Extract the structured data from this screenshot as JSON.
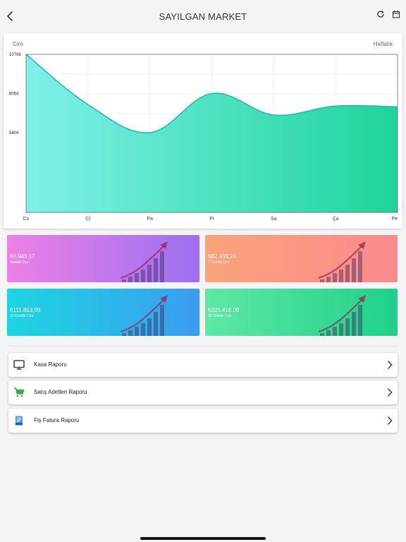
{
  "header": {
    "title": "SAYILGAN MARKET",
    "icons": [
      "back-chevron-icon",
      "refresh-icon",
      "calendar-icon"
    ]
  },
  "chart": {
    "label_left": "Ciro",
    "label_right": "Haftalık",
    "colors": {
      "line": "#22b8c0",
      "fill_top": "#7ff0e8",
      "fill_bottom": "#1ed49a",
      "grid": "#e6e6e6"
    }
  },
  "chart_data": {
    "type": "area",
    "categories": [
      "Cu",
      "Ct",
      "Pa",
      "Pt",
      "Sa",
      "Ça",
      "Pe"
    ],
    "values": [
      10706,
      7300,
      5404,
      8054,
      6600,
      7200,
      7150
    ],
    "ytick_labels": [
      "10706",
      "8054",
      "5404"
    ],
    "ylim": [
      0,
      10706
    ],
    "grid": true,
    "smooth": true
  },
  "stats": [
    {
      "value": "66.943,17",
      "label": "Günlük Ciro",
      "color_from": "#ec80e6",
      "color_to": "#9b70f0"
    },
    {
      "value": "682.433,24",
      "label": "7 Günlük Ciro",
      "color_from": "#fba37a",
      "color_to": "#fb8a8d"
    },
    {
      "value": "6111.853,09",
      "label": "15 Günlük Ciro",
      "color_from": "#1dd6e0",
      "color_to": "#3a9cf0"
    },
    {
      "value": "6225.418,00",
      "label": "30 Günlük Ciro",
      "color_from": "#5ee8a4",
      "color_to": "#1fd08a"
    }
  ],
  "reports": [
    {
      "label": "Kasa Raporu",
      "icon": "monitor-icon",
      "icon_color": "#2c3e8c"
    },
    {
      "label": "Satış Adetleri Raporu",
      "icon": "cart-icon",
      "icon_color": "#2db24a"
    },
    {
      "label": "Fiş Fatura Raporu",
      "icon": "receipt-icon",
      "icon_color": "#1e5fb0"
    }
  ]
}
